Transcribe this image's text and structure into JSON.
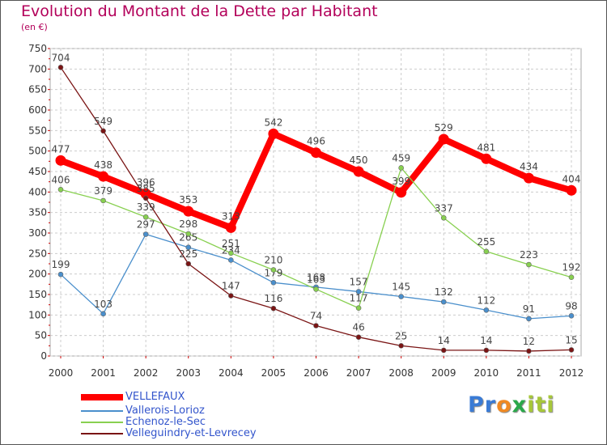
{
  "title": "Evolution du Montant de la Dette par Habitant",
  "subtitle": "(en €)",
  "logo": {
    "parts": [
      "Pr",
      "o",
      "x",
      "iti"
    ],
    "colors": [
      "#3a7bd5",
      "#f08a24",
      "#2aa84a",
      "#a7c73a"
    ]
  },
  "chart_data": {
    "type": "line",
    "x": [
      "2000",
      "2001",
      "2002",
      "2003",
      "2004",
      "2005",
      "2006",
      "2007",
      "2008",
      "2009",
      "2010",
      "2011",
      "2012"
    ],
    "ylim": [
      0,
      750
    ],
    "yticks": [
      0,
      50,
      100,
      150,
      200,
      250,
      300,
      350,
      400,
      450,
      500,
      550,
      600,
      650,
      700,
      750
    ],
    "grid": true,
    "legend": "bottom-left",
    "series": [
      {
        "name": "VELLEFAUX",
        "color": "#ff0000",
        "values": [
          477,
          438,
          396,
          353,
          313,
          542,
          496,
          450,
          399,
          529,
          481,
          434,
          404
        ],
        "labels": [
          "477",
          "438",
          "396",
          "353",
          "313",
          "542",
          "496",
          "450",
          "399",
          "529",
          "481",
          "434",
          "404"
        ]
      },
      {
        "name": "Vallerois-Lorioz",
        "color": "#4a8fcc",
        "values": [
          199,
          103,
          297,
          265,
          234,
          179,
          168,
          157,
          145,
          132,
          112,
          91,
          98
        ],
        "labels": [
          "199",
          "103",
          "297",
          "265",
          "234",
          "179",
          "168",
          "157",
          "145",
          "132",
          "112",
          "91",
          "98"
        ]
      },
      {
        "name": "Echenoz-le-Sec",
        "color": "#88d050",
        "values": [
          406,
          379,
          339,
          298,
          251,
          210,
          163,
          117,
          459,
          337,
          255,
          223,
          192
        ],
        "labels": [
          "406",
          "379",
          "339",
          "298",
          "251",
          "210",
          "163",
          "117",
          "459",
          "337",
          "255",
          "223",
          "192"
        ]
      },
      {
        "name": "Velleguindry-et-Levrecey",
        "color": "#7a1414",
        "values": [
          704,
          549,
          385,
          225,
          147,
          116,
          74,
          46,
          25,
          14,
          14,
          12,
          15
        ],
        "labels": [
          "704",
          "549",
          "385",
          "225",
          "147",
          "116",
          "74",
          "46",
          "25",
          "14",
          "14",
          "12",
          "15"
        ]
      }
    ]
  }
}
